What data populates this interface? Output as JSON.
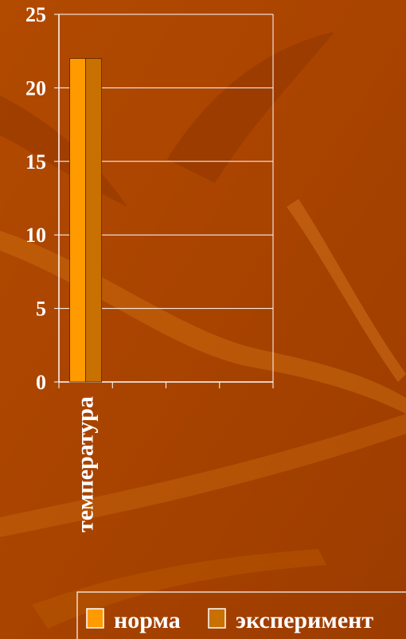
{
  "chart_data": {
    "type": "bar",
    "categories": [
      "температура"
    ],
    "series": [
      {
        "name": "норма",
        "values": [
          22
        ],
        "color": "#ff9a00"
      },
      {
        "name": "эксперимент",
        "values": [
          22
        ],
        "color": "#c87000"
      }
    ],
    "ylim": [
      0,
      25
    ],
    "yticks": [
      "0",
      "5",
      "10",
      "15",
      "20",
      "25"
    ],
    "grid": true,
    "legend": "bottom",
    "title": "",
    "xlabel": "",
    "ylabel": ""
  },
  "colors": {
    "background": "#a84300",
    "grid": "#ffffff",
    "text": "#ffffff"
  }
}
